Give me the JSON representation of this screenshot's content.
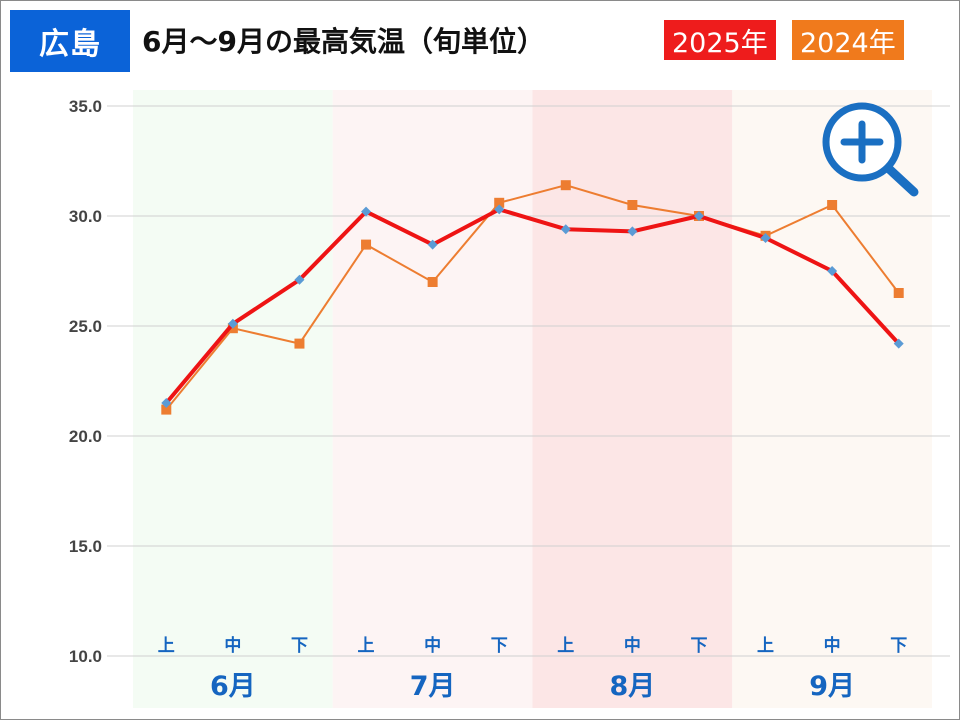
{
  "header": {
    "location": "広島",
    "title": "6月～9月の最高気温（旬単位）",
    "legend": [
      {
        "label": "2025年",
        "color": "#ee1c1c"
      },
      {
        "label": "2024年",
        "color": "#f07a1c"
      }
    ]
  },
  "colors": {
    "series_2025_line": "#ee1414",
    "series_2025_marker": "#5b9bd5",
    "series_2024": "#ed7d31",
    "month_bands": [
      "#f4fcf4",
      "#fdf4f4",
      "#fce6e6",
      "#fdf8f3"
    ],
    "accent": "#1565c0",
    "zoom_icon": "#1a6fc2"
  },
  "icons": {
    "zoom": "zoom-in-icon"
  },
  "chart_data": {
    "type": "line",
    "title": "6月～9月の最高気温（旬単位）",
    "months": [
      "6月",
      "7月",
      "8月",
      "9月"
    ],
    "dekads": [
      "上",
      "中",
      "下"
    ],
    "categories": [
      "6月上",
      "6月中",
      "6月下",
      "7月上",
      "7月中",
      "7月下",
      "8月上",
      "8月中",
      "8月下",
      "9月上",
      "9月中",
      "9月下"
    ],
    "ylim": [
      10.0,
      35.0
    ],
    "yticks": [
      "35.0",
      "30.0",
      "25.0",
      "20.0",
      "15.0",
      "10.0"
    ],
    "grid": true,
    "legend_position": "top-right",
    "series": [
      {
        "name": "2025年",
        "values": [
          21.5,
          25.1,
          27.1,
          30.2,
          28.7,
          30.3,
          29.4,
          29.3,
          30.0,
          29.0,
          27.5,
          24.2
        ]
      },
      {
        "name": "2024年",
        "values": [
          21.2,
          24.9,
          24.2,
          28.7,
          27.0,
          30.6,
          31.4,
          30.5,
          30.0,
          29.1,
          30.5,
          26.5
        ]
      }
    ]
  }
}
